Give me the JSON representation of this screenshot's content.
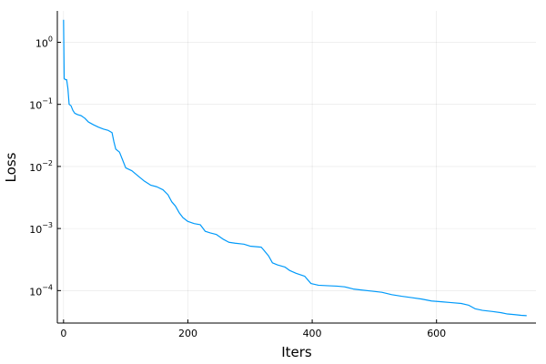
{
  "chart_data": {
    "type": "line",
    "xlabel": "Iters",
    "ylabel": "Loss",
    "y_scale": "log10",
    "grid": true,
    "legend": "none",
    "xlim": [
      -10,
      760
    ],
    "ylim": [
      3e-05,
      3.2
    ],
    "x_ticks": [
      {
        "value": 0,
        "label": "0"
      },
      {
        "value": 200,
        "label": "200"
      },
      {
        "value": 400,
        "label": "400"
      },
      {
        "value": 600,
        "label": "600"
      }
    ],
    "y_ticks": [
      {
        "value": 1,
        "base": "10",
        "exp": "0"
      },
      {
        "value": 0.1,
        "base": "10",
        "exp": "−1"
      },
      {
        "value": 0.01,
        "base": "10",
        "exp": "−2"
      },
      {
        "value": 0.001,
        "base": "10",
        "exp": "−3"
      },
      {
        "value": 0.0001,
        "base": "10",
        "exp": "−4"
      }
    ],
    "series": [
      {
        "color": "#009AFA",
        "points": [
          [
            0,
            2.3
          ],
          [
            1,
            0.26
          ],
          [
            3,
            0.25
          ],
          [
            5,
            0.25
          ],
          [
            7,
            0.18
          ],
          [
            9,
            0.1
          ],
          [
            12,
            0.095
          ],
          [
            15,
            0.08
          ],
          [
            18,
            0.072
          ],
          [
            23,
            0.068
          ],
          [
            28,
            0.066
          ],
          [
            34,
            0.06
          ],
          [
            40,
            0.052
          ],
          [
            48,
            0.047
          ],
          [
            56,
            0.043
          ],
          [
            64,
            0.04
          ],
          [
            72,
            0.038
          ],
          [
            78,
            0.035
          ],
          [
            81,
            0.025
          ],
          [
            84,
            0.019
          ],
          [
            90,
            0.017
          ],
          [
            96,
            0.012
          ],
          [
            100,
            0.0095
          ],
          [
            110,
            0.0085
          ],
          [
            120,
            0.007
          ],
          [
            130,
            0.0058
          ],
          [
            140,
            0.005
          ],
          [
            150,
            0.0047
          ],
          [
            160,
            0.0042
          ],
          [
            168,
            0.0035
          ],
          [
            174,
            0.0027
          ],
          [
            180,
            0.0023
          ],
          [
            186,
            0.0018
          ],
          [
            192,
            0.0015
          ],
          [
            200,
            0.0013
          ],
          [
            210,
            0.0012
          ],
          [
            220,
            0.00115
          ],
          [
            228,
            0.0009
          ],
          [
            236,
            0.00085
          ],
          [
            246,
            0.0008
          ],
          [
            256,
            0.00068
          ],
          [
            266,
            0.0006
          ],
          [
            276,
            0.00058
          ],
          [
            290,
            0.00056
          ],
          [
            300,
            0.00052
          ],
          [
            318,
            0.0005
          ],
          [
            322,
            0.00045
          ],
          [
            330,
            0.00036
          ],
          [
            336,
            0.00028
          ],
          [
            344,
            0.00026
          ],
          [
            356,
            0.00024
          ],
          [
            364,
            0.00021
          ],
          [
            374,
            0.00019
          ],
          [
            388,
            0.00017
          ],
          [
            398,
            0.00013
          ],
          [
            410,
            0.000122
          ],
          [
            424,
            0.00012
          ],
          [
            440,
            0.000118
          ],
          [
            452,
            0.000115
          ],
          [
            466,
            0.000106
          ],
          [
            480,
            0.000102
          ],
          [
            496,
            9.8e-05
          ],
          [
            512,
            9.4e-05
          ],
          [
            528,
            8.6e-05
          ],
          [
            544,
            8.1e-05
          ],
          [
            560,
            7.7e-05
          ],
          [
            576,
            7.3e-05
          ],
          [
            592,
            6.8e-05
          ],
          [
            608,
            6.6e-05
          ],
          [
            624,
            6.4e-05
          ],
          [
            640,
            6.2e-05
          ],
          [
            652,
            5.8e-05
          ],
          [
            662,
            5.1e-05
          ],
          [
            674,
            4.8e-05
          ],
          [
            690,
            4.6e-05
          ],
          [
            704,
            4.4e-05
          ],
          [
            714,
            4.2e-05
          ],
          [
            726,
            4.1e-05
          ],
          [
            736,
            4e-05
          ],
          [
            745,
            3.95e-05
          ]
        ]
      }
    ]
  }
}
